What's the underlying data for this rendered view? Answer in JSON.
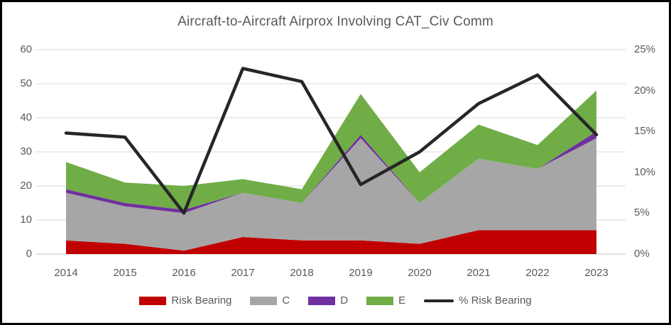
{
  "window": {
    "background": "#FFFFFF",
    "border_color": "#000000"
  },
  "chart_data": {
    "type": "area",
    "stacked": true,
    "title": "Aircraft-to-Aircraft Airprox Involving CAT_Civ Comm",
    "categories": [
      "2014",
      "2015",
      "2016",
      "2017",
      "2018",
      "2019",
      "2020",
      "2021",
      "2022",
      "2023"
    ],
    "series": [
      {
        "name": "Risk Bearing",
        "color": "#C00000",
        "values": [
          4,
          3,
          1,
          5,
          4,
          4,
          3,
          7,
          7,
          7
        ]
      },
      {
        "name": "C",
        "color": "#A6A6A6",
        "values": [
          14,
          11,
          11,
          13,
          11,
          30,
          12,
          21,
          18,
          27
        ]
      },
      {
        "name": "D",
        "color": "#7030A0",
        "values": [
          1,
          1,
          1,
          0,
          0,
          1,
          0,
          0,
          0,
          2
        ]
      },
      {
        "name": "E",
        "color": "#70AD47",
        "values": [
          8,
          6,
          7,
          4,
          4,
          12,
          9,
          10,
          7,
          12
        ]
      }
    ],
    "totals": [
      27,
      21,
      20,
      22,
      19,
      47,
      24,
      38,
      32,
      48
    ],
    "line_series": {
      "name": "% Risk Bearing",
      "color": "#262626",
      "axis": "right",
      "values_percent": [
        14.8,
        14.3,
        5.0,
        22.7,
        21.1,
        8.5,
        12.5,
        18.4,
        21.9,
        14.6
      ]
    },
    "y_left": {
      "min": 0,
      "max": 60,
      "step": 10,
      "ticks": [
        "0",
        "10",
        "20",
        "30",
        "40",
        "50",
        "60"
      ]
    },
    "y_right": {
      "min": 0,
      "max": 25,
      "step": 5,
      "ticks": [
        "0%",
        "5%",
        "10%",
        "15%",
        "20%",
        "25%"
      ]
    },
    "grid": true,
    "gridline_color": "#D9D9D9",
    "text_color": "#595959",
    "legend_position": "bottom",
    "legend": [
      {
        "label": "Risk Bearing",
        "color": "#C00000",
        "swatch": "rect"
      },
      {
        "label": "C",
        "color": "#A6A6A6",
        "swatch": "rect"
      },
      {
        "label": "D",
        "color": "#7030A0",
        "swatch": "rect"
      },
      {
        "label": "E",
        "color": "#70AD47",
        "swatch": "rect"
      },
      {
        "label": "% Risk Bearing",
        "color": "#262626",
        "swatch": "line"
      }
    ]
  }
}
